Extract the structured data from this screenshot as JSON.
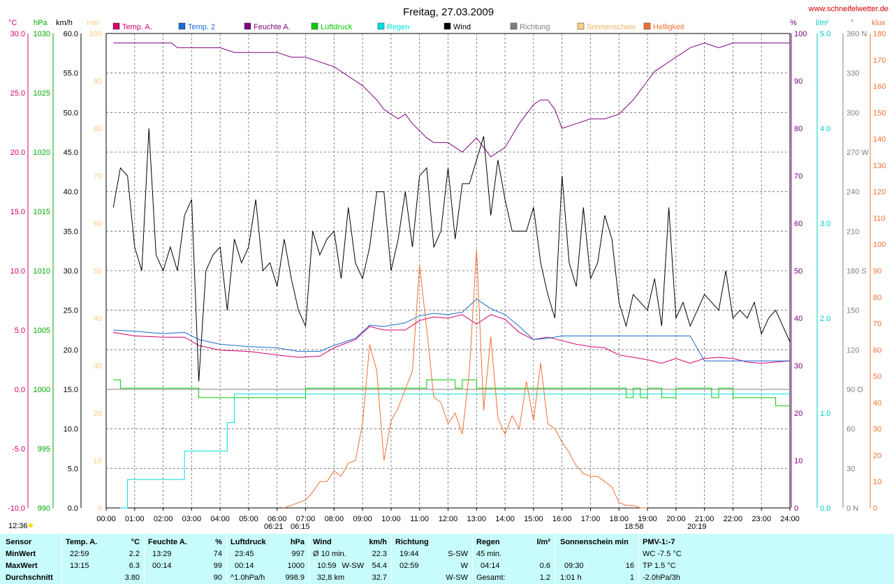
{
  "title": "Freitag, 27.03.2009",
  "website": "www.schneifelwetter.de",
  "colors": {
    "temp_a": "#d4006e",
    "temp_2": "#1a6bd6",
    "feuchte": "#800080",
    "luftdruck": "#00cc00",
    "regen": "#00e0e0",
    "wind": "#000000",
    "richtung": "#808080",
    "sonnenschein": "#ffd080",
    "helligkeit": "#f07030",
    "panel_bg": "#c8fbfb"
  },
  "axis_units": {
    "temp": "°C",
    "hpa": "hPa",
    "kmh": "km/h",
    "min": "min",
    "feuchte": "%",
    "regen": "l/m²",
    "richtung": "°",
    "helligkeit": "klux"
  },
  "chart_data": {
    "type": "line",
    "title": "Freitag, 27.03.2009",
    "x_unit": "hours",
    "xlim": [
      0,
      24
    ],
    "x_ticks": [
      "00:00",
      "01:00",
      "02:00",
      "03:00",
      "04:00",
      "05:00",
      "06:00",
      "07:00",
      "08:00",
      "09:00",
      "10:00",
      "11:00",
      "12:00",
      "13:00",
      "14:00",
      "15:00",
      "16:00",
      "17:00",
      "18:00",
      "19:00",
      "20:00",
      "21:00",
      "22:00",
      "23:00",
      "24:00"
    ],
    "left_axes": {
      "temp": {
        "ticks": [
          "30.0",
          "25.0",
          "20.0",
          "15.0",
          "10.0",
          "5.0",
          "0.0",
          "-5.0",
          "-10.0"
        ],
        "range": [
          -10,
          30
        ],
        "color": "#d4006e"
      },
      "hpa": {
        "ticks": [
          "1030",
          "1025",
          "1020",
          "1015",
          "1010",
          "1005",
          "1000",
          "995",
          "990"
        ],
        "range": [
          990,
          1030
        ],
        "color": "#00aa00"
      },
      "kmh": {
        "ticks": [
          "60.0",
          "55.0",
          "50.0",
          "45.0",
          "40.0",
          "35.0",
          "30.0",
          "25.0",
          "20.0",
          "15.0",
          "10.0",
          "5.0",
          "0.0"
        ],
        "range": [
          0,
          60
        ],
        "color": "#000000"
      },
      "min": {
        "ticks": [
          "100",
          "90",
          "80",
          "70",
          "60",
          "50",
          "40",
          "30",
          "20",
          "10",
          "0"
        ],
        "range": [
          0,
          100
        ],
        "color": "#ffc880"
      }
    },
    "right_axes": {
      "feuchte": {
        "ticks": [
          "100",
          "90",
          "80",
          "70",
          "60",
          "50",
          "40",
          "30",
          "20",
          "10",
          "0"
        ],
        "range": [
          0,
          100
        ],
        "color": "#800080"
      },
      "regen": {
        "ticks": [
          "5.0",
          "4.0",
          "3.0",
          "2.0",
          "1.0",
          "0.0"
        ],
        "range": [
          0,
          5
        ],
        "color": "#00c8c8"
      },
      "richtung": {
        "ticks": [
          "360 N",
          "330",
          "300",
          "270 W",
          "240",
          "210",
          "180 S",
          "150",
          "120",
          "90 O",
          "60",
          "30",
          "0 N"
        ],
        "range": [
          0,
          360
        ],
        "color": "#808080"
      },
      "helligkeit": {
        "ticks": [
          "180",
          "170",
          "160",
          "150",
          "140",
          "130",
          "120",
          "110",
          "100",
          "90",
          "80",
          "70",
          "60",
          "50",
          "40",
          "30",
          "20",
          "10",
          "0"
        ],
        "range": [
          0,
          180
        ],
        "color": "#f07030"
      }
    },
    "legend": [
      "Temp. A.",
      "Temp. 2",
      "Feuchte A.",
      "Luftdruck",
      "Regen",
      "Wind",
      "Richtung",
      "Sonnenschein",
      "Helligkeit"
    ],
    "series": [
      {
        "name": "Temp. A.",
        "axis": "temp",
        "x": [
          0.25,
          1,
          2,
          2.75,
          3.25,
          4,
          5,
          6,
          6.75,
          7.5,
          8,
          8.75,
          9.25,
          9.75,
          10.5,
          11,
          11.5,
          12,
          12.5,
          13,
          13.5,
          14,
          14.5,
          15,
          15.5,
          16,
          16.5,
          17,
          17.5,
          18,
          18.5,
          19,
          19.5,
          20,
          20.5,
          21,
          21.5,
          22,
          22.5,
          23,
          23.5,
          24
        ],
        "y": [
          4.8,
          4.5,
          4.4,
          4.4,
          3.7,
          3.3,
          3.2,
          2.9,
          2.7,
          2.8,
          3.5,
          4.2,
          5.3,
          5.0,
          5.0,
          5.8,
          6.1,
          6.0,
          6.3,
          5.5,
          6.3,
          5.9,
          4.8,
          4.2,
          4.4,
          4.1,
          3.8,
          3.6,
          3.5,
          2.9,
          2.7,
          2.5,
          2.2,
          2.6,
          2.2,
          2.6,
          2.7,
          2.6,
          2.3,
          2.2,
          2.3,
          2.4
        ]
      },
      {
        "name": "Temp. 2",
        "axis": "temp",
        "x": [
          0.25,
          1,
          2,
          2.75,
          3.25,
          4,
          5,
          6,
          6.75,
          7.5,
          8,
          8.75,
          9.25,
          9.75,
          10.5,
          11,
          11.5,
          12,
          12.5,
          13,
          13.5,
          14,
          14.5,
          15,
          15.5,
          16,
          17,
          18,
          19,
          20,
          20.5,
          21,
          22,
          23,
          24
        ],
        "y": [
          5.0,
          4.9,
          4.7,
          4.8,
          4.2,
          3.8,
          3.6,
          3.5,
          3.2,
          3.2,
          3.7,
          4.3,
          5.4,
          5.3,
          5.6,
          6.2,
          6.4,
          6.3,
          6.5,
          7.6,
          6.8,
          6.3,
          5.3,
          4.2,
          4.3,
          4.5,
          4.5,
          4.5,
          4.5,
          4.5,
          4.5,
          2.4,
          2.4,
          2.4,
          2.4
        ]
      },
      {
        "name": "Feuchte A.",
        "axis": "feuchte",
        "x": [
          0.25,
          1,
          2.3,
          2.5,
          3,
          4,
          4.5,
          5,
          6,
          6.5,
          7,
          7.5,
          8,
          8.5,
          9,
          9.5,
          9.75,
          10.25,
          10.5,
          10.75,
          11.25,
          11.5,
          12,
          12.5,
          13,
          13.5,
          14,
          14.5,
          15,
          15.25,
          15.5,
          15.75,
          16,
          16.5,
          17,
          17.5,
          18,
          18.5,
          19,
          19.25,
          19.5,
          20,
          20.5,
          21,
          21.5,
          22,
          22.5,
          23,
          24
        ],
        "y": [
          98,
          98,
          98,
          97,
          97,
          97,
          96,
          96,
          96,
          95,
          95,
          94,
          93,
          91,
          89,
          86,
          84,
          82,
          83,
          81,
          78,
          77,
          77,
          75,
          78,
          74,
          76,
          81,
          85,
          86,
          86,
          84,
          80,
          81,
          82,
          82,
          83,
          86,
          90,
          92,
          93,
          95,
          97,
          98,
          97,
          98,
          98,
          98,
          98
        ]
      },
      {
        "name": "Luftdruck",
        "axis": "hpa",
        "x": [
          0.25,
          0.5,
          1,
          2,
          3,
          3.25,
          4,
          5,
          6,
          6.5,
          7,
          8,
          9,
          10,
          11,
          11.25,
          12,
          12.25,
          12.5,
          13,
          13.25,
          14,
          15,
          16,
          17,
          18,
          18.25,
          18.5,
          18.75,
          19,
          19.5,
          20,
          21,
          21.25,
          21.5,
          22,
          23,
          23.5,
          24
        ],
        "y": [
          1000.8,
          1000.1,
          1000.1,
          1000.1,
          1000.1,
          999.3,
          999.3,
          999.3,
          999.3,
          999.3,
          1000.1,
          1000.1,
          1000.1,
          1000.1,
          1000.1,
          1000.8,
          1000.8,
          1000.1,
          1000.8,
          1000.1,
          1000.1,
          1000.1,
          1000.1,
          1000.1,
          1000.1,
          1000.1,
          999.3,
          1000.1,
          999.3,
          1000.1,
          999.3,
          1000.1,
          1000.1,
          999.3,
          1000.1,
          999.3,
          999.3,
          998.6,
          998.6
        ]
      },
      {
        "name": "Regen",
        "axis": "regen",
        "x": [
          0.5,
          0.75,
          1,
          2.25,
          2.75,
          3,
          3.75,
          4.25,
          4.5,
          24
        ],
        "y": [
          0,
          0.3,
          0.3,
          0.3,
          0.6,
          0.6,
          0.6,
          0.9,
          1.2,
          1.2
        ]
      },
      {
        "name": "Wind",
        "axis": "kmh",
        "x": [
          0.25,
          0.5,
          0.75,
          1,
          1.25,
          1.5,
          1.75,
          2,
          2.25,
          2.5,
          2.75,
          3,
          3.25,
          3.5,
          3.75,
          4,
          4.25,
          4.5,
          4.75,
          5,
          5.25,
          5.5,
          5.75,
          6,
          6.25,
          6.5,
          6.75,
          7,
          7.25,
          7.5,
          7.75,
          8,
          8.25,
          8.5,
          8.75,
          9,
          9.25,
          9.5,
          9.75,
          10,
          10.25,
          10.5,
          10.75,
          11,
          11.25,
          11.5,
          11.75,
          12,
          12.25,
          12.5,
          12.75,
          13,
          13.25,
          13.5,
          13.75,
          14,
          14.25,
          14.5,
          14.75,
          15,
          15.25,
          15.5,
          15.75,
          16,
          16.25,
          16.5,
          16.75,
          17,
          17.25,
          17.5,
          17.75,
          18,
          18.25,
          18.5,
          18.75,
          19,
          19.25,
          19.5,
          19.75,
          20,
          20.25,
          20.5,
          20.75,
          21,
          21.25,
          21.5,
          21.75,
          22,
          22.25,
          22.5,
          22.75,
          23,
          23.25,
          23.5,
          23.75,
          24
        ],
        "y": [
          38,
          43,
          42,
          33,
          30,
          48,
          32,
          30,
          33,
          30,
          37,
          39,
          16,
          30,
          32,
          33,
          25,
          34,
          31,
          33,
          39,
          30,
          31,
          28,
          34,
          29,
          25,
          23,
          35,
          32,
          34,
          35,
          29,
          38,
          31,
          29,
          33,
          40,
          40,
          30,
          34,
          40,
          33,
          42,
          43,
          33,
          35,
          43,
          34,
          41,
          41,
          44,
          47,
          37,
          44,
          39,
          35,
          35,
          35,
          38,
          31,
          27,
          24,
          42,
          31,
          28,
          38,
          29,
          31,
          37,
          34,
          26,
          23,
          27,
          26,
          25,
          29,
          23,
          38,
          24,
          26,
          23,
          25,
          27,
          26,
          25,
          30,
          24,
          25,
          24,
          26,
          22,
          24,
          25,
          23,
          21
        ]
      },
      {
        "name": "Helligkeit",
        "axis": "helligkeit",
        "x": [
          6.25,
          6.5,
          7,
          7.25,
          7.5,
          7.75,
          8,
          8.25,
          8.5,
          8.75,
          9,
          9.25,
          9.5,
          9.75,
          10,
          10.25,
          10.5,
          10.75,
          11,
          11.25,
          11.5,
          11.75,
          12,
          12.25,
          12.5,
          12.75,
          13,
          13.25,
          13.5,
          13.75,
          14,
          14.25,
          14.5,
          14.75,
          15,
          15.25,
          15.5,
          15.75,
          16,
          16.25,
          16.5,
          16.75,
          17,
          17.25,
          17.5,
          17.75,
          18,
          18.25,
          18.5,
          18.75,
          19
        ],
        "y": [
          0,
          1,
          3,
          6,
          10,
          10,
          14,
          12,
          17,
          18,
          32,
          62,
          52,
          18,
          33,
          38,
          45,
          52,
          92,
          68,
          42,
          40,
          32,
          36,
          28,
          52,
          98,
          37,
          65,
          34,
          28,
          35,
          30,
          48,
          33,
          55,
          32,
          30,
          25,
          21,
          16,
          13,
          12,
          12,
          10,
          8,
          2,
          1,
          1,
          0,
          0
        ]
      }
    ],
    "sunrise": "06:21",
    "sunrise_alt": "06:15",
    "sunset": "18:58",
    "sunset_alt": "20:19",
    "time_marker": "12:36"
  },
  "stats": {
    "sensor": {
      "header": "Sensor",
      "rows": [
        "MinWert",
        "MaxWert",
        "Durchschnitt"
      ]
    },
    "temp": {
      "header": "Temp. A.",
      "unit": "°C",
      "rows": [
        [
          "22:59",
          "2.2"
        ],
        [
          "13:15",
          "6.3"
        ],
        [
          "",
          "3.80"
        ]
      ]
    },
    "feuchte": {
      "header": "Feuchte A.",
      "unit": "%",
      "rows": [
        [
          "13:29",
          "74"
        ],
        [
          "00:14",
          "99"
        ],
        [
          "",
          "90"
        ]
      ]
    },
    "luftdruck": {
      "header": "Luftdruck",
      "unit": "hPa",
      "rows": [
        [
          "23:45",
          "997"
        ],
        [
          "00:14",
          "1000"
        ],
        [
          "^1.0hPa/h",
          "998.9"
        ]
      ]
    },
    "wind": {
      "header": "Wind",
      "unit": "km/h",
      "rows": [
        [
          "Ø 10 min.",
          "",
          "22.3"
        ],
        [
          "10:59",
          "W-SW",
          "54.4"
        ],
        [
          "32,8 km",
          "",
          "32.7"
        ]
      ]
    },
    "richtung": {
      "header": "Richtung",
      "rows": [
        [
          "19:44",
          "S-SW"
        ],
        [
          "02:59",
          "W"
        ],
        [
          "",
          "W-SW"
        ]
      ]
    },
    "regen": {
      "header": "Regen",
      "unit": "l/m²",
      "rows": [
        [
          "45 min.",
          ""
        ],
        [
          "04:14",
          "0.6"
        ],
        [
          "Gesamt:",
          "1.2"
        ]
      ]
    },
    "sonnenschein": {
      "header": "Sonnenschein min",
      "rows": [
        [
          "",
          ""
        ],
        [
          "09:30",
          "16"
        ],
        [
          "1:01 h",
          "1"
        ]
      ]
    },
    "pmv": {
      "header": "PMV-1:-7",
      "rows": [
        "WC -7.5 °C",
        "TP 1.5 °C",
        "-2.0hPa/3h"
      ]
    }
  }
}
